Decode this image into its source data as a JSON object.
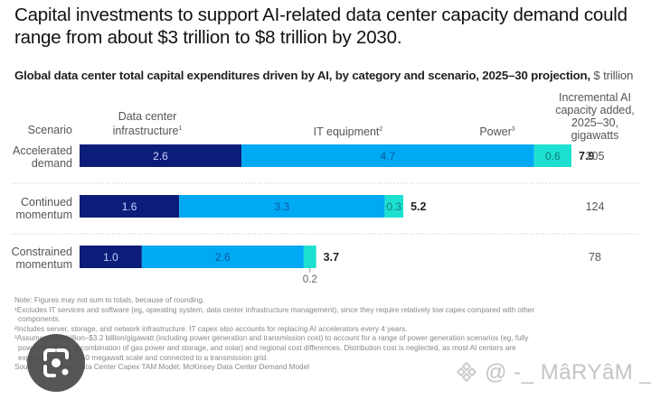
{
  "title": "Capital investments to support AI-related data center capacity demand could range from about $3 trillion to $8 trillion by 2030.",
  "subtitle_bold": "Global data center total capital expenditures driven by AI, by category and scenario, 2025–30 projection,",
  "subtitle_unit": " $ trillion",
  "headers": {
    "scenario": "Scenario",
    "infra": "Data center infrastructure",
    "infra_sup": "1",
    "it": "IT equipment",
    "it_sup": "2",
    "power": "Power",
    "power_sup": "3",
    "capacity": "Incremental AI capacity added, 2025–30, gigawatts"
  },
  "colors": {
    "infra": "#0b1d78",
    "it": "#00a9f4",
    "power": "#1ee0d0"
  },
  "chart_data": {
    "type": "bar",
    "orientation": "horizontal",
    "stacked": true,
    "title": "Global data center total capital expenditures driven by AI, by category and scenario, 2025–30 projection, $ trillion",
    "categories": [
      "Accelerated demand",
      "Continued momentum",
      "Constrained momentum"
    ],
    "series": [
      {
        "name": "Data center infrastructure",
        "values": [
          2.6,
          1.6,
          1.0
        ]
      },
      {
        "name": "IT equipment",
        "values": [
          4.7,
          3.3,
          2.6
        ]
      },
      {
        "name": "Power",
        "values": [
          0.6,
          0.3,
          0.2
        ]
      }
    ],
    "value_labels": [
      [
        "2.6",
        "4.7",
        "0.6"
      ],
      [
        "1.6",
        "3.3",
        "0.3"
      ],
      [
        "1.0",
        "2.6",
        "0.2"
      ]
    ],
    "totals": [
      "7.9",
      "5.2",
      "3.7"
    ],
    "capacity_gw": [
      "205",
      "124",
      "78"
    ],
    "xlim": [
      0,
      7.9
    ],
    "legend": "top",
    "grid": false
  },
  "scenarios": [
    {
      "line1": "Accelerated",
      "line2": "demand"
    },
    {
      "line1": "Continued",
      "line2": "momentum"
    },
    {
      "line1": "Constrained",
      "line2": "momentum"
    }
  ],
  "notes": [
    "Note: Figures may not sum to totals, because of rounding.",
    "¹Excludes IT services and software (eg, operating system, data center infrastructure management), since they require relatively low capex compared with other",
    "components.",
    "²Includes server, storage, and network infrastructure. IT capex also accounts for replacing AI accelerators every 4 years.",
    "³Assumes $2.8 billion–$3.2 billion/gigawatt (including power generation and transmission cost) to account for a range of power generation scenarios (eg, fully",
    "powered by gas, a combination of gas power and storage, and solar) and regional cost differences. Distribution cost is neglected, as most AI centers are",
    "expected to be at >50 megawatt scale and connected to a transmission grid.",
    "Source: McKinsey Data Center Capex TAM Model; McKinsey Data Center Demand Model"
  ],
  "watermark": "@ -_ MâRYâM _-"
}
